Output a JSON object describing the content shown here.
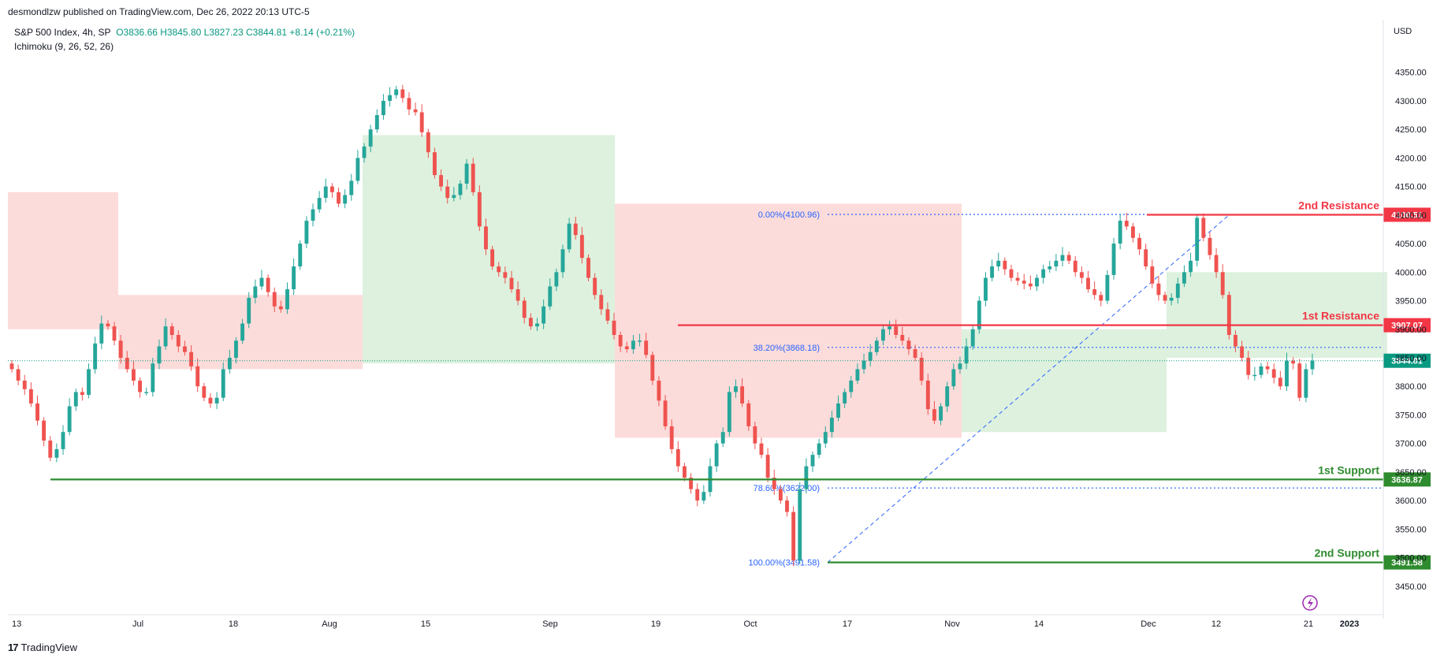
{
  "header": {
    "published": "desmondlzw published on TradingView.com, Dec 26, 2022 20:13 UTC-5",
    "symbol": "S&P 500 Index, 4h, SP",
    "ohlc": "O3836.66  H3845.80  L3827.23  C3844.81  +8.14 (+0.21%)",
    "indicator": "Ichimoku (9, 26, 52, 26)",
    "currency": "USD"
  },
  "footer": {
    "brand": "TradingView"
  },
  "colors": {
    "up": "#26a69a",
    "down": "#ef5350",
    "resistance": "#f23645",
    "support": "#2e8b2e",
    "fib": "#2962ff",
    "cloud_bull": "#d7efd8",
    "cloud_bear": "#fcd6d3",
    "price_tag": "#089981",
    "text_muted": "#131722"
  },
  "chart_data": {
    "type": "candlestick",
    "ylim": [
      3400,
      4380
    ],
    "y_ticks": [
      3450,
      3500,
      3550,
      3600,
      3650,
      3700,
      3750,
      3800,
      3850,
      3900,
      3950,
      4000,
      4050,
      4100,
      4150,
      4200,
      4250,
      4300,
      4350
    ],
    "x_labels": [
      "13",
      "Jul",
      "18",
      "Aug",
      "15",
      "Sep",
      "19",
      "Oct",
      "17",
      "Nov",
      "14",
      "Dec",
      "12",
      "21",
      "2023"
    ],
    "price_axis_labels": [
      "4350.00",
      "4300.00",
      "4250.00",
      "4200.00",
      "4150.00",
      "4100.00",
      "4050.00",
      "4000.00",
      "3950.00",
      "3900.00",
      "3850.00",
      "3800.00",
      "3750.00",
      "3700.00",
      "3650.00",
      "3600.00",
      "3550.00",
      "3500.00",
      "3450.00"
    ],
    "levels": [
      {
        "name": "2nd Resistance",
        "value": 4100.51,
        "label": "4100.51",
        "kind": "resistance"
      },
      {
        "name": "1st Resistance",
        "value": 3907.07,
        "label": "3907.07",
        "kind": "resistance"
      },
      {
        "name": "1st Support",
        "value": 3636.87,
        "label": "3636.87",
        "kind": "support"
      },
      {
        "name": "2nd Support",
        "value": 3491.58,
        "label": "3491.58",
        "kind": "support"
      }
    ],
    "last_price": {
      "value": 3844.81,
      "label": "3844.81"
    },
    "fib_levels": [
      {
        "label": "0.00%(4100.96)",
        "value": 4100.96
      },
      {
        "label": "38.20%(3868.18)",
        "value": 3868.18
      },
      {
        "label": "78.60%(3622.00)",
        "value": 3622.0
      },
      {
        "label": "100.00%(3491.58)",
        "value": 3491.58
      }
    ],
    "closes": [
      3830,
      3810,
      3795,
      3770,
      3740,
      3705,
      3675,
      3690,
      3720,
      3765,
      3790,
      3785,
      3830,
      3875,
      3910,
      3905,
      3880,
      3850,
      3830,
      3810,
      3790,
      3790,
      3840,
      3870,
      3905,
      3890,
      3870,
      3860,
      3835,
      3800,
      3780,
      3770,
      3780,
      3830,
      3850,
      3880,
      3910,
      3955,
      3975,
      3990,
      3965,
      3940,
      3935,
      3970,
      4010,
      4050,
      4090,
      4110,
      4130,
      4150,
      4140,
      4120,
      4135,
      4160,
      4200,
      4220,
      4250,
      4275,
      4300,
      4310,
      4320,
      4305,
      4285,
      4280,
      4245,
      4210,
      4170,
      4150,
      4130,
      4135,
      4155,
      4190,
      4140,
      4080,
      4040,
      4010,
      4000,
      3990,
      3970,
      3950,
      3920,
      3905,
      3910,
      3940,
      3975,
      4000,
      4040,
      4085,
      4065,
      4025,
      3990,
      3960,
      3935,
      3915,
      3890,
      3870,
      3865,
      3880,
      3880,
      3855,
      3810,
      3775,
      3730,
      3690,
      3660,
      3640,
      3620,
      3600,
      3615,
      3660,
      3700,
      3720,
      3790,
      3800,
      3770,
      3730,
      3700,
      3680,
      3640,
      3620,
      3600,
      3580,
      3495,
      3620,
      3660,
      3680,
      3700,
      3720,
      3745,
      3770,
      3790,
      3810,
      3830,
      3845,
      3860,
      3880,
      3900,
      3905,
      3890,
      3880,
      3865,
      3850,
      3810,
      3760,
      3740,
      3765,
      3800,
      3830,
      3840,
      3870,
      3900,
      3950,
      3990,
      4010,
      4020,
      4005,
      3990,
      3985,
      3980,
      3975,
      3990,
      4005,
      4010,
      4020,
      4030,
      4020,
      4000,
      3990,
      3970,
      3960,
      3950,
      3995,
      4050,
      4090,
      4080,
      4060,
      4040,
      4010,
      3980,
      3960,
      3950,
      3955,
      3980,
      4000,
      4020,
      4095,
      4060,
      4030,
      4000,
      3960,
      3890,
      3870,
      3850,
      3820,
      3820,
      3835,
      3830,
      3815,
      3800,
      3845,
      3840,
      3780,
      3830,
      3845
    ]
  }
}
